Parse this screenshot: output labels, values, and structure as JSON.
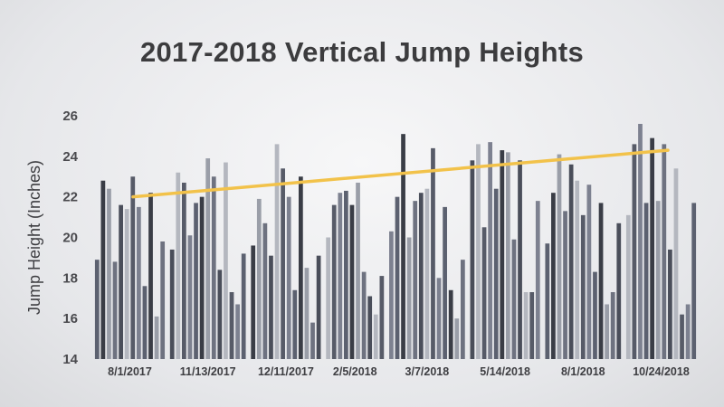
{
  "chart_data": {
    "type": "bar",
    "title": "2017-2018 Vertical Jump Heights",
    "ylabel": "Jump Height (Inches)",
    "xlabel": "",
    "ylim": [
      14,
      26
    ],
    "yticks": [
      14,
      16,
      18,
      20,
      22,
      24,
      26
    ],
    "grid": false,
    "legend": "none",
    "categories": [
      "8/1/2017",
      "11/13/2017",
      "12/11/2017",
      "2/5/2018",
      "3/7/2018",
      "5/14/2018",
      "8/1/2018",
      "10/24/2018"
    ],
    "groups": [
      [
        18.9,
        22.8,
        22.4,
        18.8,
        21.6,
        21.4,
        23.0,
        21.5,
        17.6,
        22.2,
        16.1,
        19.8
      ],
      [
        19.4,
        23.2,
        22.7,
        20.1,
        21.7,
        22.0,
        23.9,
        23.0,
        18.4,
        23.7,
        17.3,
        16.7,
        19.2
      ],
      [
        19.6,
        21.9,
        20.7,
        19.1,
        24.6,
        23.4,
        22.0,
        17.4,
        23.0,
        18.5,
        15.8,
        19.1
      ],
      [
        20.0,
        21.6,
        22.2,
        22.3,
        21.6,
        22.7,
        18.3,
        17.1,
        16.2,
        18.1
      ],
      [
        20.3,
        22.0,
        25.1,
        20.0,
        21.8,
        22.2,
        22.4,
        24.4,
        18.0,
        21.5,
        17.4,
        16.0,
        18.9
      ],
      [
        23.8,
        24.6,
        20.5,
        24.7,
        22.4,
        24.3,
        24.2,
        19.9,
        23.8,
        17.3,
        17.3,
        21.8
      ],
      [
        19.7,
        22.2,
        24.1,
        21.3,
        23.6,
        22.8,
        21.1,
        22.6,
        18.3,
        21.7,
        16.7,
        17.3,
        20.7
      ],
      [
        21.1,
        24.6,
        25.6,
        21.7,
        24.9,
        21.8,
        24.6,
        19.4,
        23.4,
        16.2,
        16.7,
        21.7
      ]
    ],
    "trendline": {
      "color": "#f2c24a",
      "start": 22.0,
      "end": 24.3
    },
    "bar_colors": [
      "#5c6170",
      "#3a3d46",
      "#9a9ea8",
      "#6e7280",
      "#4a4e5a",
      "#b4b7bf",
      "#575b68",
      "#7d8190"
    ]
  }
}
